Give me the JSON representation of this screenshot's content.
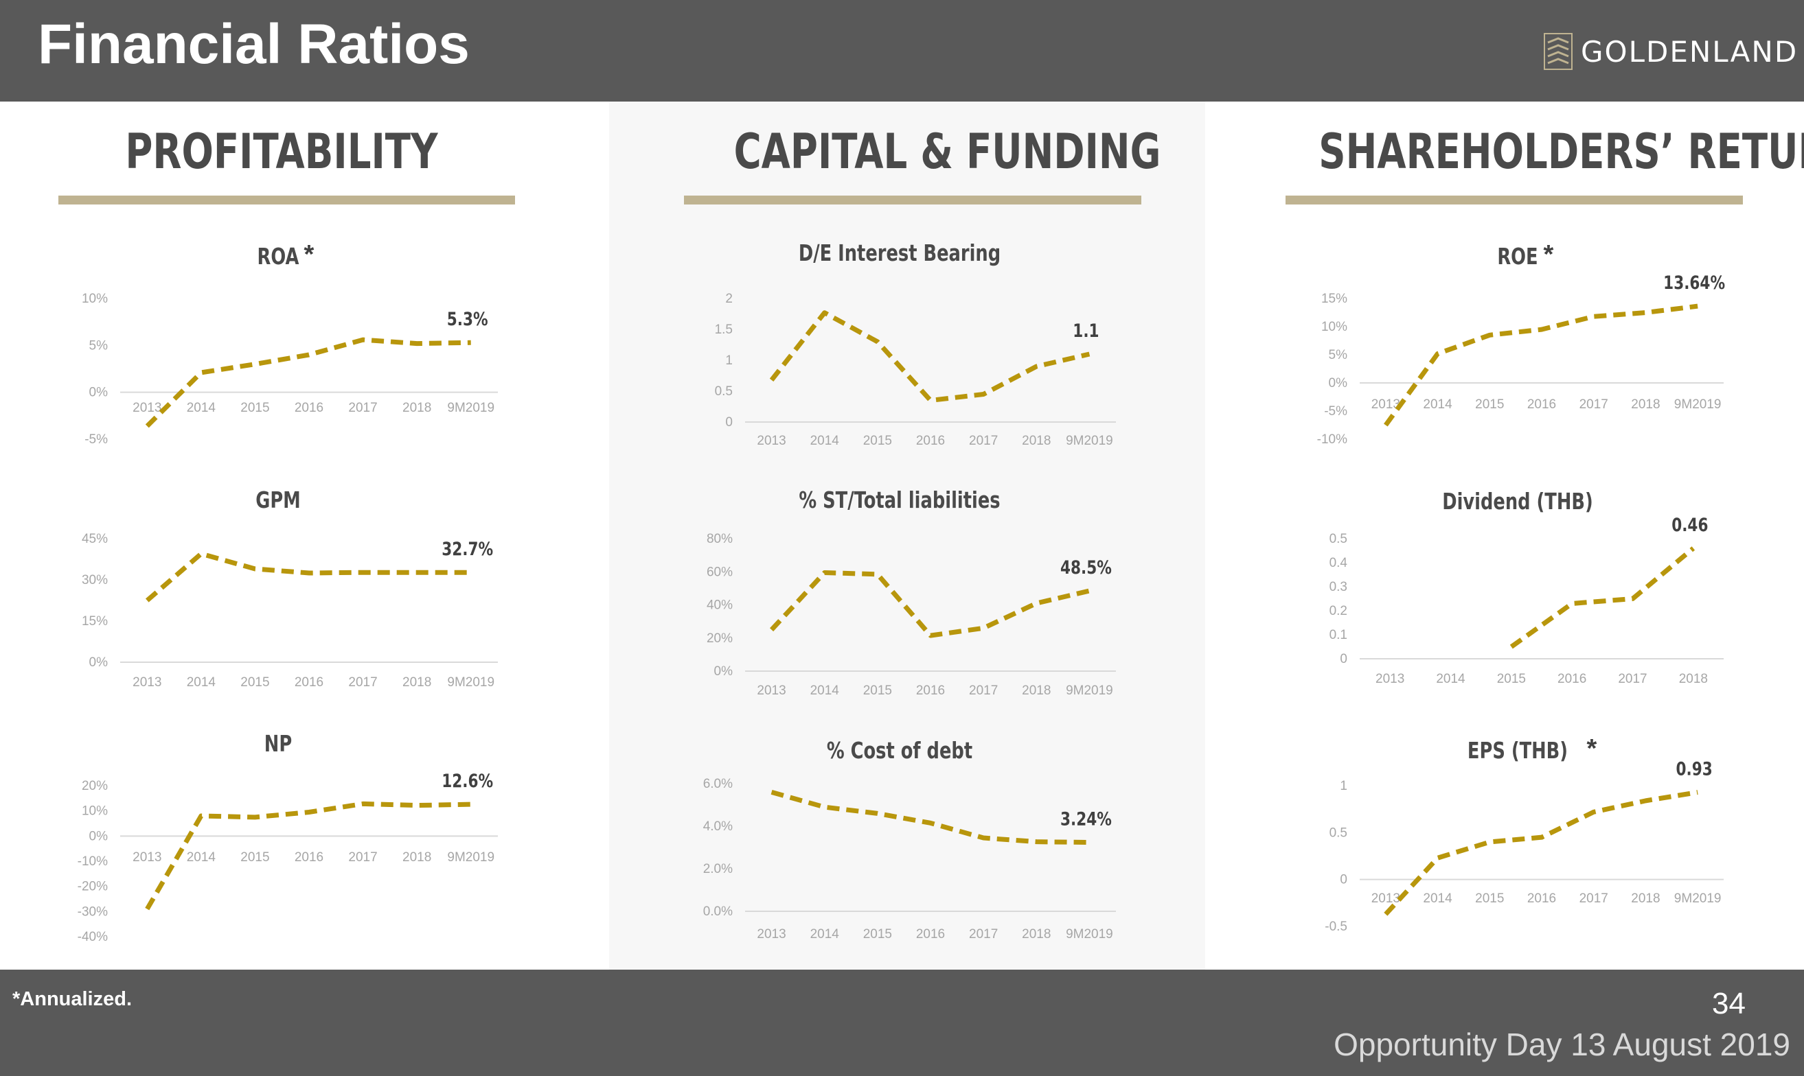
{
  "header": {
    "title": "Financial Ratios",
    "logo_text": "GOLDENLAND"
  },
  "sections": [
    {
      "title": "PROFITABILITY"
    },
    {
      "title": "CAPITAL & FUNDING"
    },
    {
      "title": "SHAREHOLDERS’ RETURNS"
    }
  ],
  "footer": {
    "note": "*Annualized.",
    "page": "34",
    "event": "Opportunity Day 13 August 2019"
  },
  "colors": {
    "header_bg": "#595959",
    "accent_rule": "#bfb391",
    "line": "#b8960c",
    "axis_text": "#a6a6a6",
    "label_text": "#404040"
  },
  "chart_data": [
    {
      "id": "roa",
      "type": "line",
      "title": "ROA",
      "asterisk": true,
      "x": [
        "2013",
        "2014",
        "2015",
        "2016",
        "2017",
        "2018",
        "9M2019"
      ],
      "values": [
        -3.6,
        2.1,
        3.0,
        4.0,
        5.6,
        5.2,
        5.3
      ],
      "yticks": [
        "10%",
        "5%",
        "0%",
        "-5%"
      ],
      "ylim": [
        -5,
        10
      ],
      "end_label": "5.3%"
    },
    {
      "id": "gpm",
      "type": "line",
      "title": "GPM",
      "asterisk": false,
      "x": [
        "2013",
        "2014",
        "2015",
        "2016",
        "2017",
        "2018",
        "9M2019"
      ],
      "values": [
        22.5,
        39.5,
        34.0,
        32.5,
        32.7,
        32.7,
        32.7
      ],
      "yticks": [
        "45%",
        "30%",
        "15%",
        "0%"
      ],
      "ylim": [
        0,
        45
      ],
      "end_label": "32.7%"
    },
    {
      "id": "np",
      "type": "line",
      "title": "NP",
      "asterisk": false,
      "x": [
        "2013",
        "2014",
        "2015",
        "2016",
        "2017",
        "2018",
        "9M2019"
      ],
      "values": [
        -29,
        8,
        7.5,
        9.5,
        12.8,
        12.2,
        12.6
      ],
      "yticks": [
        "20%",
        "10%",
        "0%",
        "-10%",
        "-20%",
        "-30%",
        "-40%"
      ],
      "ylim": [
        -40,
        20
      ],
      "end_label": "12.6%"
    },
    {
      "id": "de",
      "type": "line",
      "title": "D/E Interest Bearing",
      "asterisk": false,
      "x": [
        "2013",
        "2014",
        "2015",
        "2016",
        "2017",
        "2018",
        "9M2019"
      ],
      "values": [
        0.68,
        1.77,
        1.3,
        0.35,
        0.45,
        0.9,
        1.1
      ],
      "yticks": [
        "2",
        "1.5",
        "1",
        "0.5",
        "0"
      ],
      "ylim": [
        0,
        2
      ],
      "end_label": "1.1"
    },
    {
      "id": "st",
      "type": "line",
      "title": "% ST/Total liabilities",
      "asterisk": false,
      "x": [
        "2013",
        "2014",
        "2015",
        "2016",
        "2017",
        "2018",
        "9M2019"
      ],
      "values": [
        25,
        59.5,
        58.5,
        21.5,
        26,
        41,
        48.5
      ],
      "yticks": [
        "80%",
        "60%",
        "40%",
        "20%",
        "0%"
      ],
      "ylim": [
        0,
        80
      ],
      "end_label": "48.5%"
    },
    {
      "id": "cod",
      "type": "line",
      "title": "% Cost of debt",
      "asterisk": false,
      "x": [
        "2013",
        "2014",
        "2015",
        "2016",
        "2017",
        "2018",
        "9M2019"
      ],
      "values": [
        5.6,
        4.9,
        4.6,
        4.15,
        3.45,
        3.27,
        3.24
      ],
      "yticks": [
        "6.0%",
        "4.0%",
        "2.0%",
        "0.0%"
      ],
      "ylim": [
        0,
        6
      ],
      "end_label": "3.24%"
    },
    {
      "id": "roe",
      "type": "line",
      "title": "ROE",
      "asterisk": true,
      "x": [
        "2013",
        "2014",
        "2015",
        "2016",
        "2017",
        "2018",
        "9M2019"
      ],
      "values": [
        -7.5,
        5.2,
        8.5,
        9.5,
        11.8,
        12.5,
        13.64
      ],
      "yticks": [
        "15%",
        "10%",
        "5%",
        "0%",
        "-5%",
        "-10%"
      ],
      "ylim": [
        -10,
        15
      ],
      "end_label": "13.64%"
    },
    {
      "id": "div",
      "type": "line",
      "title": "Dividend (THB)",
      "asterisk": false,
      "x": [
        "2013",
        "2014",
        "2015",
        "2016",
        "2017",
        "2018"
      ],
      "values": [
        null,
        null,
        0.05,
        0.23,
        0.25,
        0.46
      ],
      "yticks": [
        "0.5",
        "0.4",
        "0.3",
        "0.2",
        "0.1",
        "0"
      ],
      "ylim": [
        0,
        0.5
      ],
      "end_label": "0.46"
    },
    {
      "id": "eps",
      "type": "line",
      "title": "EPS (THB)",
      "asterisk": true,
      "x": [
        "2013",
        "2014",
        "2015",
        "2016",
        "2017",
        "2018",
        "9M2019"
      ],
      "values": [
        -0.37,
        0.23,
        0.4,
        0.45,
        0.72,
        0.84,
        0.93
      ],
      "yticks": [
        "1",
        "0.5",
        "0",
        "-0.5"
      ],
      "ylim": [
        -0.5,
        1
      ],
      "end_label": "0.93"
    }
  ]
}
